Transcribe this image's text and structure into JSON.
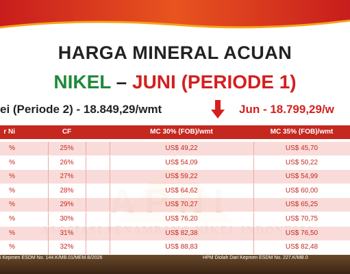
{
  "header": {
    "title": "HARGA MINERAL ACUAN",
    "subtitle_green": "NIKEL",
    "subtitle_dash": "–",
    "subtitle_red": "JUNI (PERIODE 1)"
  },
  "prices": {
    "previous": "ei (Periode 2) - 18.849,29/wmt",
    "current": "Jun - 18.799,29/w"
  },
  "watermark": {
    "logo": "APNI",
    "text": "ASOSIASI PENAMBANG NIKEL INDONESIA"
  },
  "table": {
    "columns": [
      "r Ni",
      "CF",
      "MC 30% (FOB)/wmt",
      "MC 35% (FOB)/wmt"
    ],
    "rows": [
      [
        "%",
        "25%",
        "US$ 49,22",
        "US$ 45,70"
      ],
      [
        "%",
        "26%",
        "US$ 54,09",
        "US$ 50,22"
      ],
      [
        "%",
        "27%",
        "US$ 59,22",
        "US$ 54,99"
      ],
      [
        "%",
        "28%",
        "US$ 64,62",
        "US$ 60,00"
      ],
      [
        "%",
        "29%",
        "US$ 70,27",
        "US$ 65,25"
      ],
      [
        "%",
        "30%",
        "US$ 76,20",
        "US$ 70,75"
      ],
      [
        "%",
        "31%",
        "US$ 82,38",
        "US$ 76,50"
      ],
      [
        "%",
        "32%",
        "US$ 88,83",
        "US$ 82,48"
      ]
    ]
  },
  "footer": {
    "left": "i Kepmen ESDM No. 144.K/MB.01/MEM.B/2026",
    "right": "HPM Diolah Dari Kepmen ESDM No. 227.K/MB.0"
  }
}
